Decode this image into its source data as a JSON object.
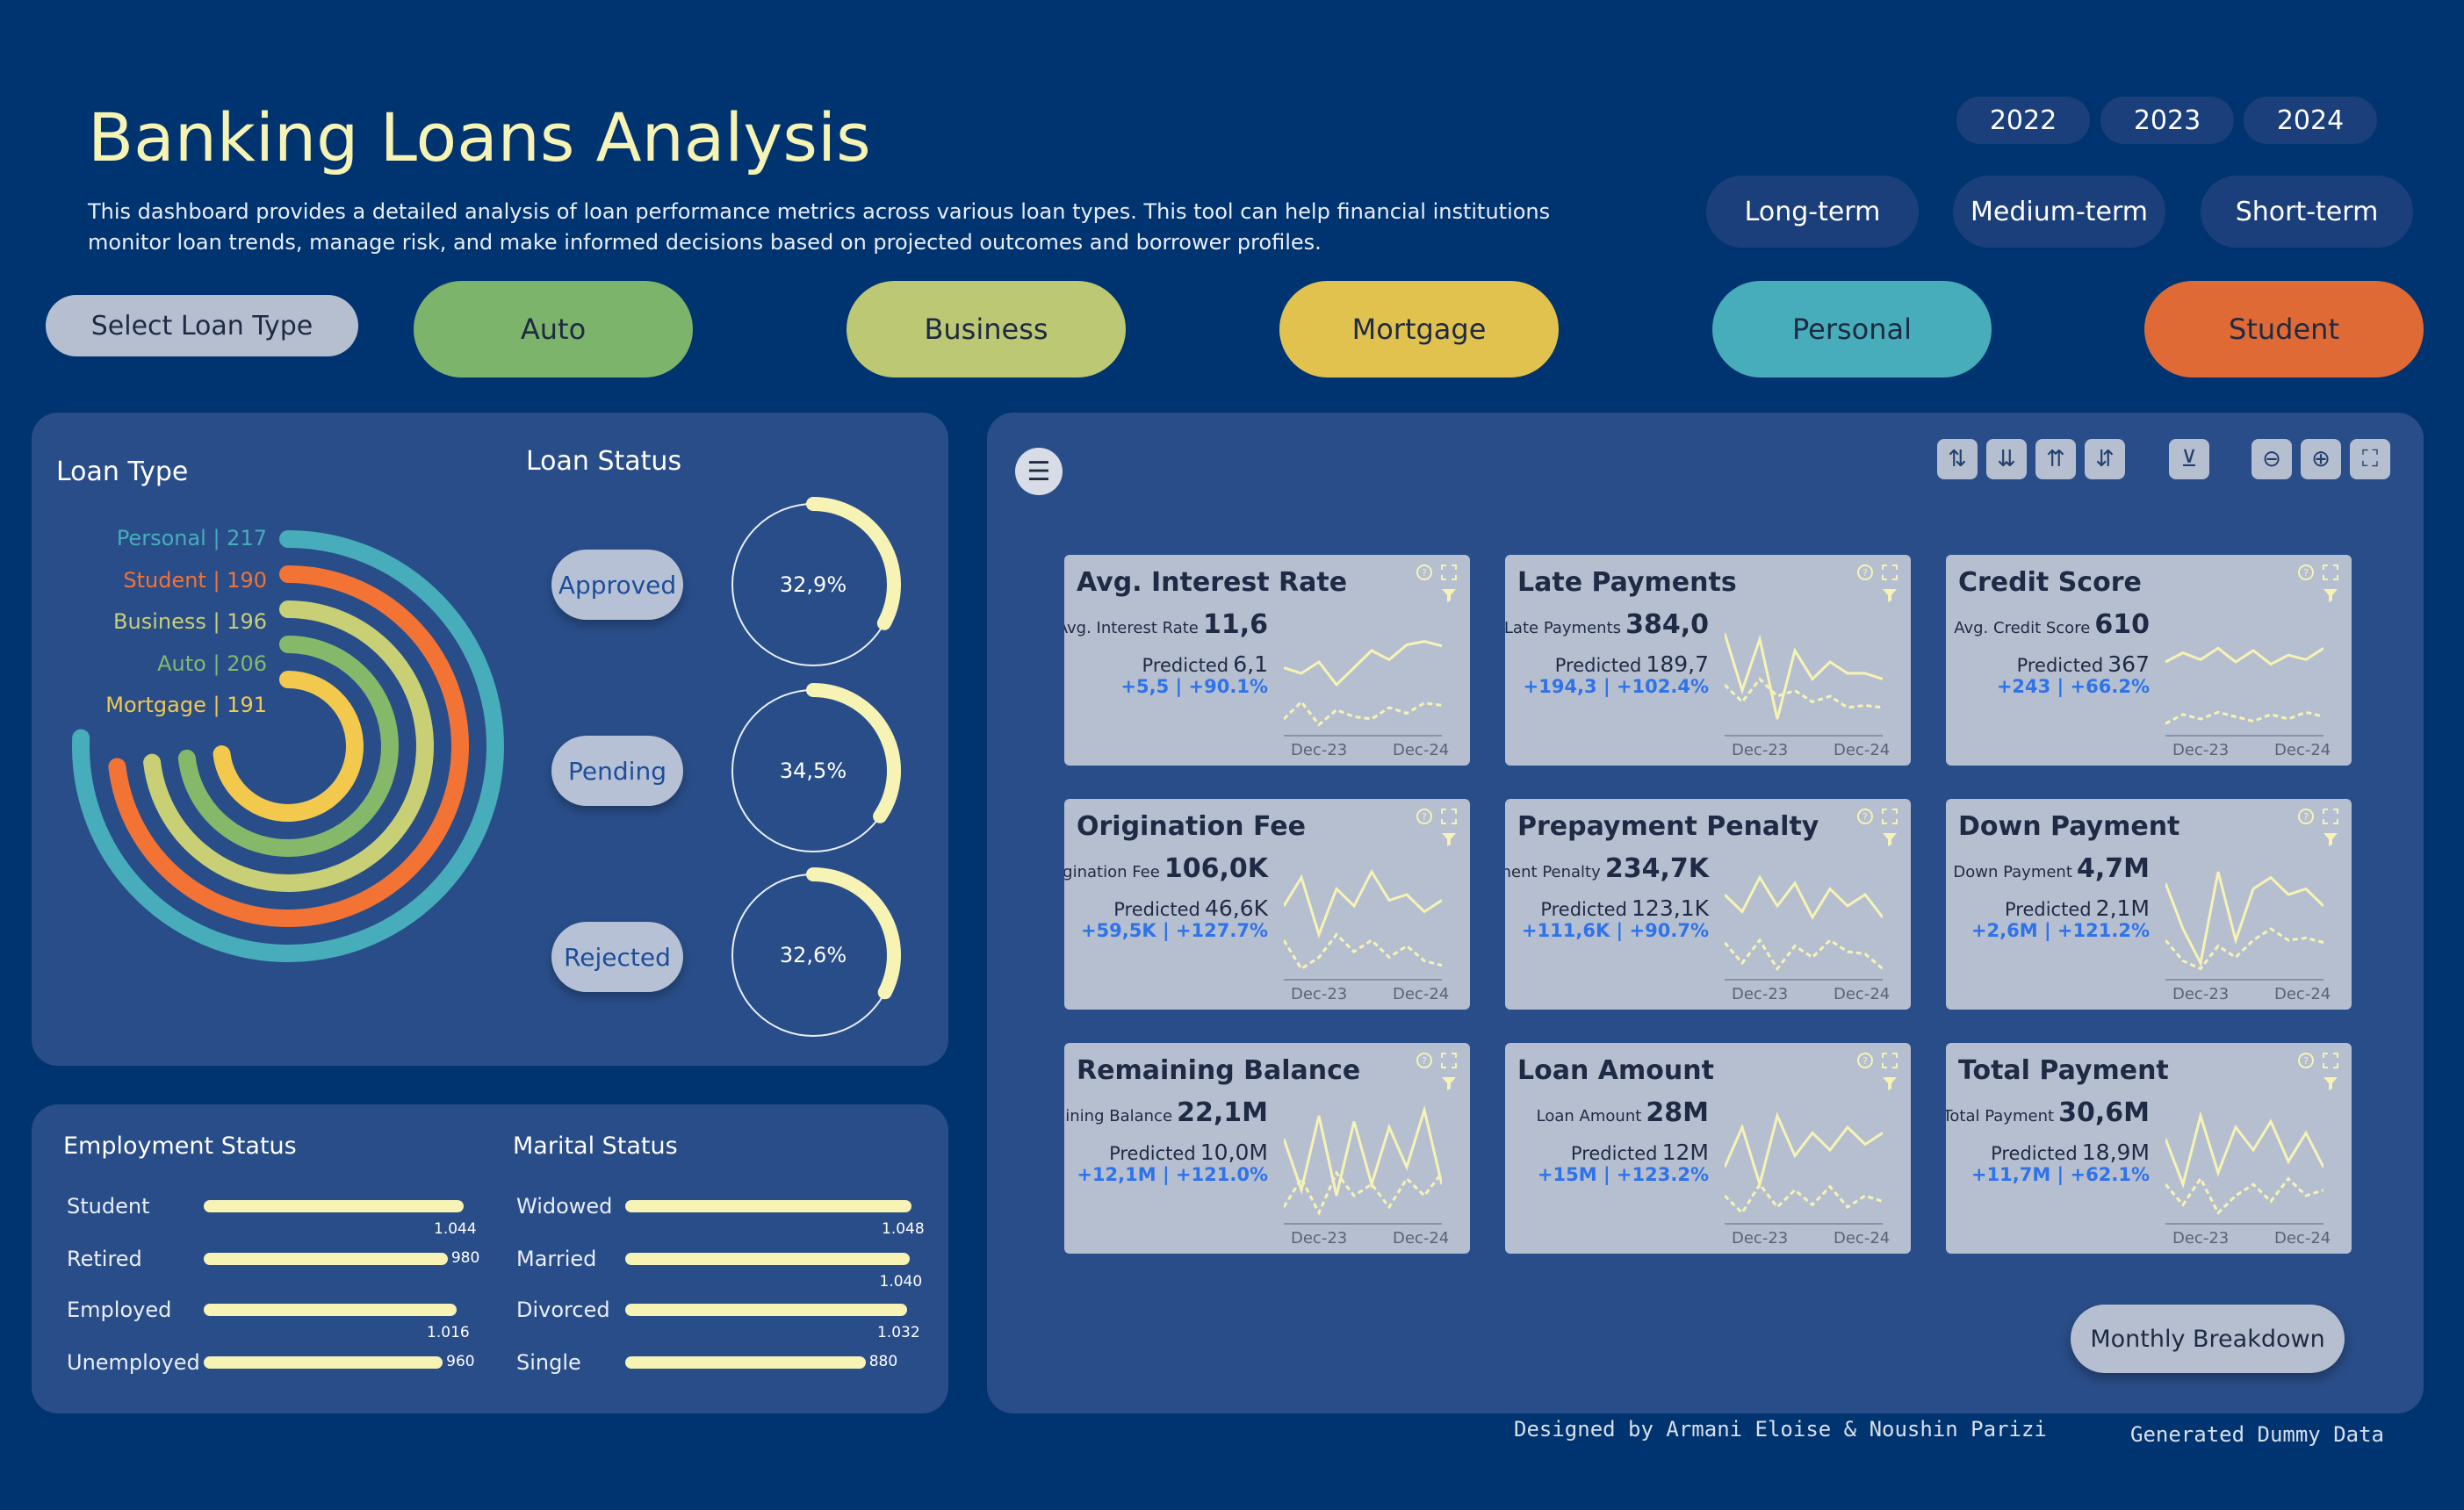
{
  "header": {
    "title": "Banking Loans Analysis",
    "description": "This dashboard provides a detailed analysis of loan performance metrics across various loan types. This tool can help financial institutions monitor loan trends, manage risk, and make informed decisions based on projected outcomes and borrower profiles."
  },
  "years": [
    "2022",
    "2023",
    "2024"
  ],
  "terms": [
    "Long-term",
    "Medium-term",
    "Short-term"
  ],
  "loan_types": {
    "select_label": "Select Loan Type",
    "items": [
      {
        "label": "Auto",
        "color": "#7db46c"
      },
      {
        "label": "Business",
        "color": "#bcc873"
      },
      {
        "label": "Mortgage",
        "color": "#e2c24e"
      },
      {
        "label": "Personal",
        "color": "#47adba"
      },
      {
        "label": "Student",
        "color": "#e06a35"
      }
    ]
  },
  "loan_type_panel": {
    "title": "Loan Type",
    "rings": [
      {
        "label": "Personal | 217",
        "color": "#47adba",
        "value": 217
      },
      {
        "label": "Student | 190",
        "color": "#f37335",
        "value": 190
      },
      {
        "label": "Business | 196",
        "color": "#c9cf74",
        "value": 196
      },
      {
        "label": "Auto | 206",
        "color": "#86b86a",
        "value": 206
      },
      {
        "label": "Mortgage | 191",
        "color": "#f2c94c",
        "value": 191
      }
    ]
  },
  "loan_status": {
    "title": "Loan Status",
    "items": [
      {
        "label": "Approved",
        "pct_label": "32,9%",
        "pct": 32.9
      },
      {
        "label": "Pending",
        "pct_label": "34,5%",
        "pct": 34.5
      },
      {
        "label": "Rejected",
        "pct_label": "32,6%",
        "pct": 32.6
      }
    ]
  },
  "employment": {
    "title": "Employment Status",
    "max": 1044,
    "rows": [
      {
        "label": "Student",
        "value": 1044,
        "value_label": "1.044"
      },
      {
        "label": "Retired",
        "value": 980,
        "value_label": "980"
      },
      {
        "label": "Employed",
        "value": 1016,
        "value_label": "1.016"
      },
      {
        "label": "Unemployed",
        "value": 960,
        "value_label": "960"
      }
    ]
  },
  "marital": {
    "title": "Marital Status",
    "max": 1048,
    "rows": [
      {
        "label": "Widowed",
        "value": 1048,
        "value_label": "1.048"
      },
      {
        "label": "Married",
        "value": 1040,
        "value_label": "1.040"
      },
      {
        "label": "Divorced",
        "value": 1032,
        "value_label": "1.032"
      },
      {
        "label": "Single",
        "value": 880,
        "value_label": "880"
      }
    ]
  },
  "toolbar": {
    "menu_icon": "hamburger-icon",
    "icons": [
      "sort-asc-icon",
      "sort-desc-icon",
      "sort-az-icon",
      "sort-za-icon",
      "clear-filter-icon",
      "zoom-out-icon",
      "zoom-in-icon",
      "fullscreen-icon"
    ]
  },
  "kpis": [
    {
      "title": "Avg. Interest Rate",
      "metric_label": "Avg. Interest Rate",
      "value": "11,6",
      "predicted_label": "Predicted",
      "predicted": "6,1",
      "delta": "+5,5 | +90.1%",
      "x_start": "Dec-23",
      "x_end": "Dec-24"
    },
    {
      "title": "Late Payments",
      "metric_label": "Late Payments",
      "value": "384,0",
      "predicted_label": "Predicted",
      "predicted": "189,7",
      "delta": "+194,3 | +102.4%",
      "x_start": "Dec-23",
      "x_end": "Dec-24"
    },
    {
      "title": "Credit Score",
      "metric_label": "Avg. Credit Score",
      "value": "610",
      "predicted_label": "Predicted",
      "predicted": "367",
      "delta": "+243 | +66.2%",
      "x_start": "Dec-23",
      "x_end": "Dec-24"
    },
    {
      "title": "Origination Fee",
      "metric_label": "Origination Fee",
      "value": "106,0K",
      "predicted_label": "Predicted",
      "predicted": "46,6K",
      "delta": "+59,5K | +127.7%",
      "x_start": "Dec-23",
      "x_end": "Dec-24"
    },
    {
      "title": "Prepayment Penalty",
      "metric_label": "Prepayment Penalty",
      "value": "234,7K",
      "predicted_label": "Predicted",
      "predicted": "123,1K",
      "delta": "+111,6K | +90.7%",
      "x_start": "Dec-23",
      "x_end": "Dec-24"
    },
    {
      "title": "Down Payment",
      "metric_label": "Down Payment",
      "value": "4,7M",
      "predicted_label": "Predicted",
      "predicted": "2,1M",
      "delta": "+2,6M | +121.2%",
      "x_start": "Dec-23",
      "x_end": "Dec-24"
    },
    {
      "title": "Remaining Balance",
      "metric_label": "Remaining Balance",
      "value": "22,1M",
      "predicted_label": "Predicted",
      "predicted": "10,0M",
      "delta": "+12,1M | +121.0%",
      "x_start": "Dec-23",
      "x_end": "Dec-24"
    },
    {
      "title": "Loan Amount",
      "metric_label": "Loan Amount",
      "value": "28M",
      "predicted_label": "Predicted",
      "predicted": "12M",
      "delta": "+15M | +123.2%",
      "x_start": "Dec-23",
      "x_end": "Dec-24"
    },
    {
      "title": "Total Payment",
      "metric_label": "Total Payment",
      "value": "30,6M",
      "predicted_label": "Predicted",
      "predicted": "18,9M",
      "delta": "+11,7M | +62.1%",
      "x_start": "Dec-23",
      "x_end": "Dec-24"
    }
  ],
  "breakdown_button": "Monthly Breakdown",
  "footer": {
    "credit": "Designed by Armani Eloise & Noushin Parizi",
    "note": "Generated Dummy Data"
  }
}
